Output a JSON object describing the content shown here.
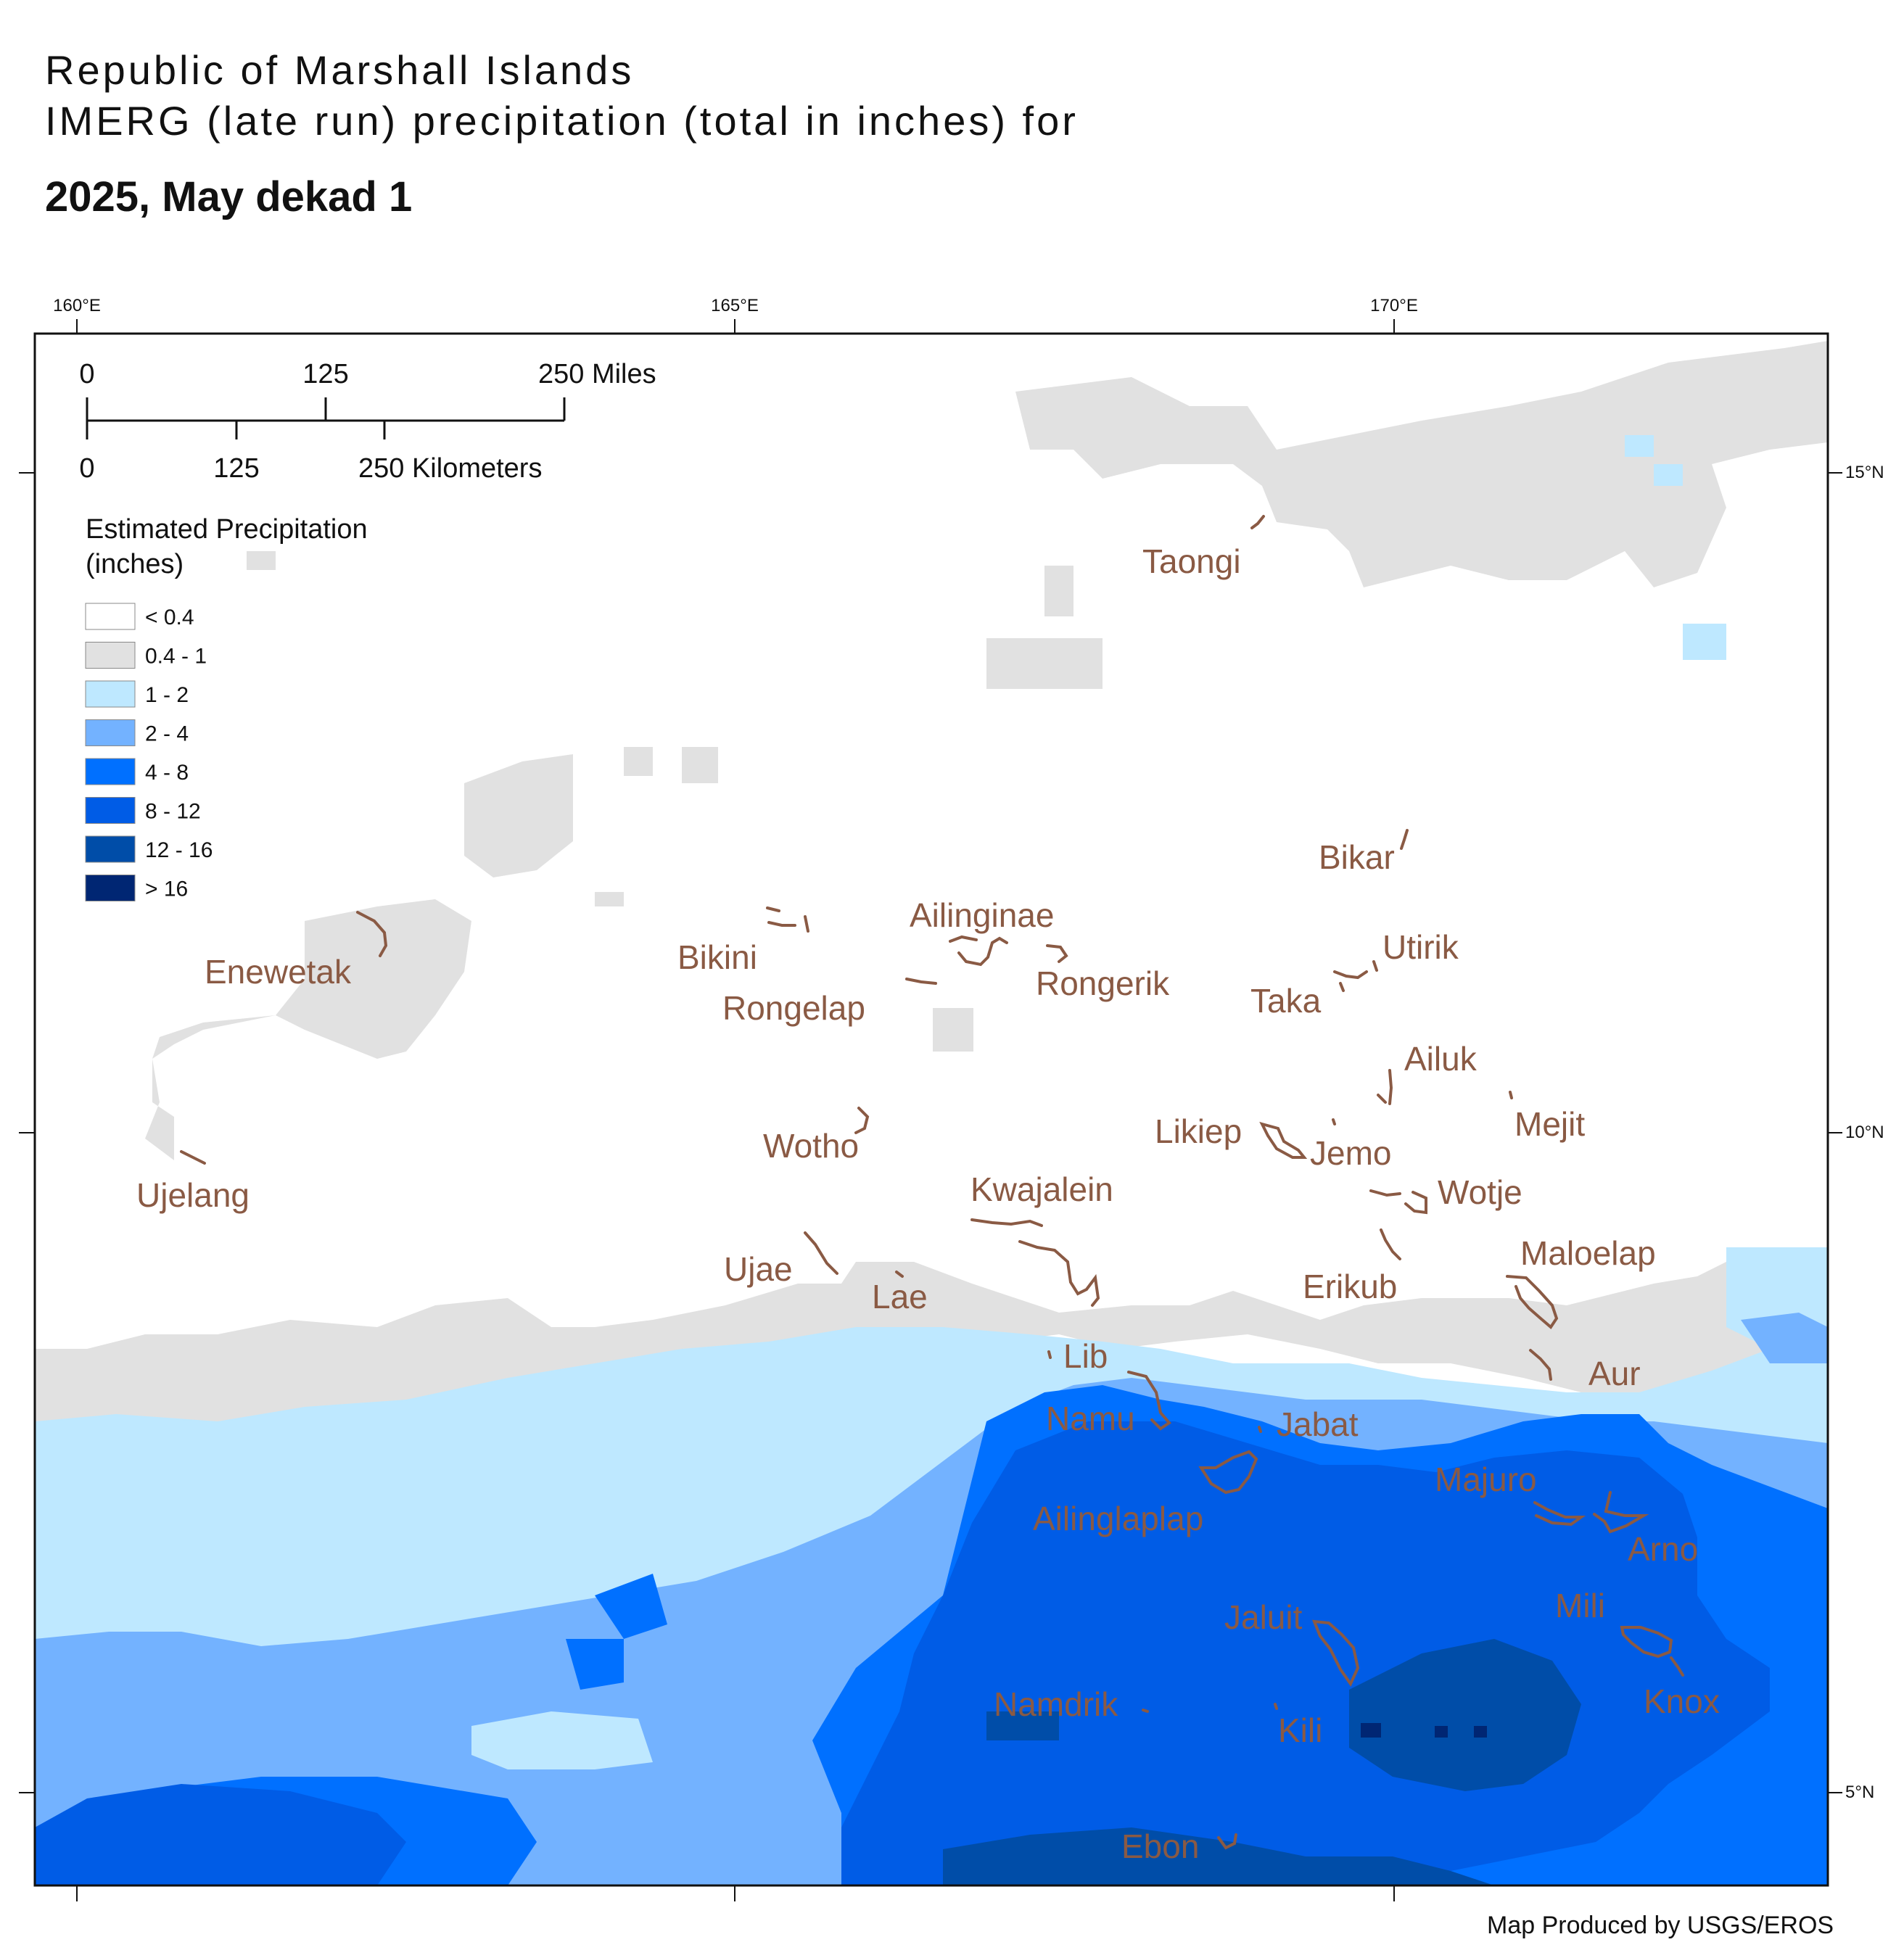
{
  "title": {
    "line1": "Republic of Marshall Islands",
    "line2": "IMERG (late run) precipitation (total in inches) for",
    "line3": "2025, May dekad 1"
  },
  "graticule": {
    "longitudes": [
      "160°E",
      "165°E",
      "170°E"
    ],
    "latitudes": [
      "15°N",
      "10°N",
      "5°N"
    ]
  },
  "scale_bar": {
    "miles": [
      "0",
      "125",
      "250 Miles"
    ],
    "kilometers": [
      "0",
      "125",
      "250 Kilometers"
    ]
  },
  "legend": {
    "title_line1": "Estimated Precipitation",
    "title_line2": "(inches)",
    "classes": [
      {
        "label": "< 0.4",
        "color": "#ffffff"
      },
      {
        "label": "0.4 - 1",
        "color": "#e1e1e1"
      },
      {
        "label": "1 - 2",
        "color": "#bee8ff"
      },
      {
        "label": "2 - 4",
        "color": "#73b2ff"
      },
      {
        "label": "4 - 8",
        "color": "#0070ff"
      },
      {
        "label": "8 - 12",
        "color": "#005ce6"
      },
      {
        "label": "12 - 16",
        "color": "#004da8"
      },
      {
        "label": "> 16",
        "color": "#002673"
      }
    ]
  },
  "atolls": [
    "Taongi",
    "Bikar",
    "Ailinginae",
    "Utirik",
    "Enewetak",
    "Bikini",
    "Rongerik",
    "Rongelap",
    "Taka",
    "Ailuk",
    "Mejit",
    "Likiep",
    "Jemo",
    "Wotho",
    "Kwajalein",
    "Wotje",
    "Ujelang",
    "Maloelap",
    "Ujae",
    "Erikub",
    "Lae",
    "Lib",
    "Aur",
    "Namu",
    "Jabat",
    "Majuro",
    "Ailinglaplap",
    "Arno",
    "Jaluit",
    "Mili",
    "Knox",
    "Namdrik",
    "Kili",
    "Ebon"
  ],
  "credit": "Map Produced by USGS/EROS"
}
